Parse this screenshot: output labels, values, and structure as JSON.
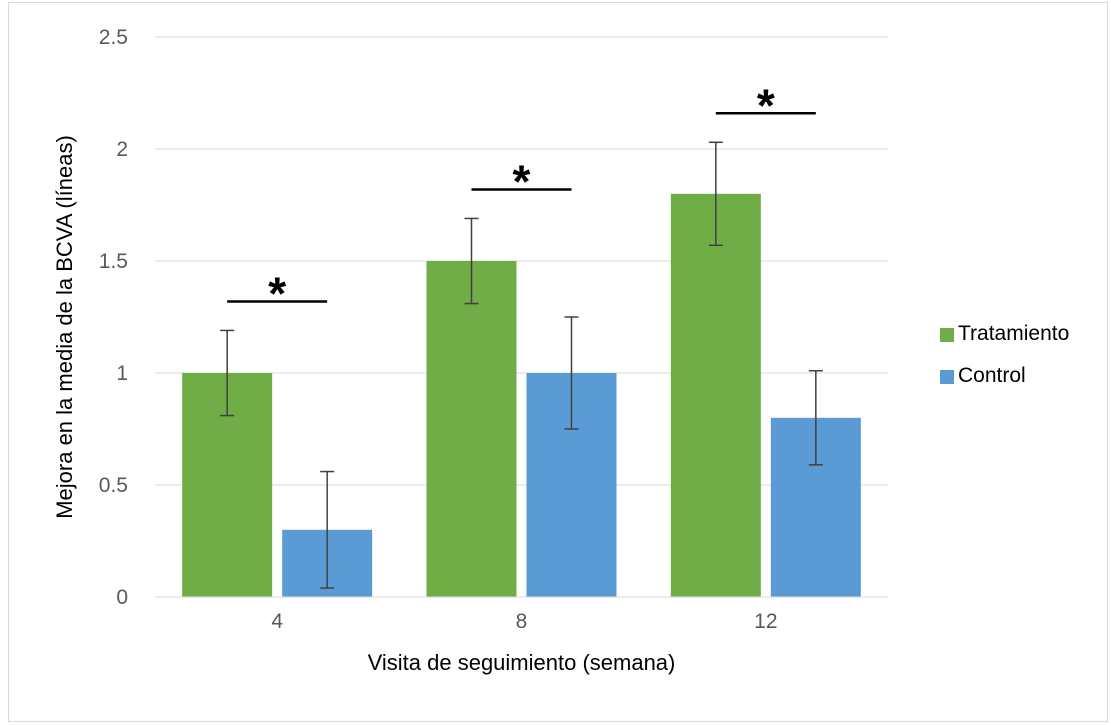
{
  "chart_data": {
    "type": "bar",
    "title": "",
    "xlabel": "Visita de seguimiento (semana)",
    "ylabel": "Mejora en la media de la BCVA (líneas)",
    "categories": [
      "4",
      "8",
      "12"
    ],
    "ylim": [
      0,
      2.5
    ],
    "yticks": [
      "0",
      "0.5",
      "1",
      "1.5",
      "2",
      "2.5"
    ],
    "grid": true,
    "legend_position": "right",
    "significance_marker": "*",
    "series": [
      {
        "name": "Tratamiento",
        "color": "#70ad47",
        "values": [
          1.0,
          1.5,
          1.8
        ],
        "error": [
          0.19,
          0.19,
          0.23
        ]
      },
      {
        "name": "Control",
        "color": "#5b9bd5",
        "values": [
          0.3,
          1.0,
          0.8
        ],
        "error": [
          0.26,
          0.25,
          0.21
        ]
      }
    ]
  }
}
